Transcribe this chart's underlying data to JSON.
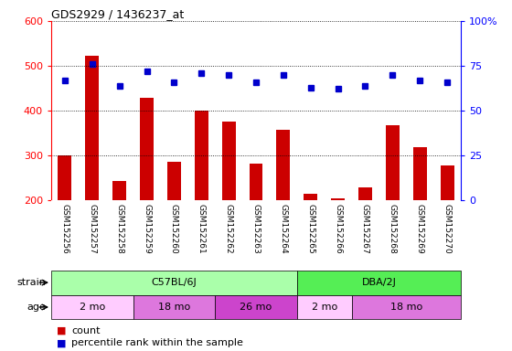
{
  "title": "GDS2929 / 1436237_at",
  "samples": [
    "GSM152256",
    "GSM152257",
    "GSM152258",
    "GSM152259",
    "GSM152260",
    "GSM152261",
    "GSM152262",
    "GSM152263",
    "GSM152264",
    "GSM152265",
    "GSM152266",
    "GSM152267",
    "GSM152268",
    "GSM152269",
    "GSM152270"
  ],
  "counts": [
    300,
    522,
    243,
    428,
    285,
    400,
    375,
    282,
    358,
    215,
    203,
    228,
    368,
    318,
    278
  ],
  "percentile_ranks": [
    67,
    76,
    64,
    72,
    66,
    71,
    70,
    66,
    70,
    63,
    62,
    64,
    70,
    67,
    66
  ],
  "bar_color": "#cc0000",
  "dot_color": "#0000cc",
  "ylim_left": [
    200,
    600
  ],
  "ylim_right": [
    0,
    100
  ],
  "yticks_left": [
    200,
    300,
    400,
    500,
    600
  ],
  "yticks_right": [
    0,
    25,
    50,
    75,
    100
  ],
  "strain_groups": [
    {
      "label": "C57BL/6J",
      "start": 0,
      "end": 9,
      "color": "#aaffaa"
    },
    {
      "label": "DBA/2J",
      "start": 9,
      "end": 15,
      "color": "#55ee55"
    }
  ],
  "age_groups": [
    {
      "label": "2 mo",
      "start": 0,
      "end": 3,
      "color": "#ffccff"
    },
    {
      "label": "18 mo",
      "start": 3,
      "end": 6,
      "color": "#dd77dd"
    },
    {
      "label": "26 mo",
      "start": 6,
      "end": 9,
      "color": "#cc44cc"
    },
    {
      "label": "2 mo",
      "start": 9,
      "end": 11,
      "color": "#ffccff"
    },
    {
      "label": "18 mo",
      "start": 11,
      "end": 15,
      "color": "#dd77dd"
    }
  ],
  "bg_color": "#ffffff",
  "tick_area_bg": "#cccccc",
  "grid_dotted_color": "#000000"
}
